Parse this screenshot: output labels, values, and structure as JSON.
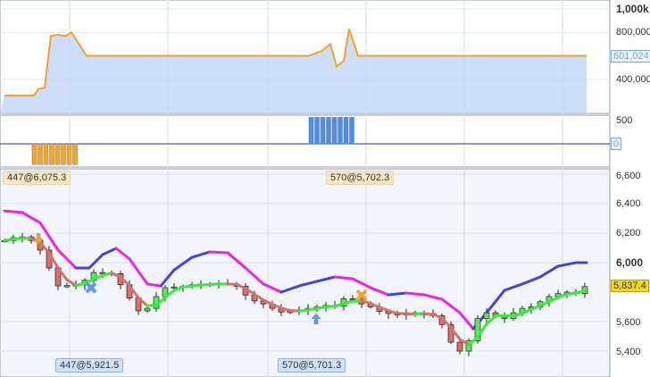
{
  "chart_data": [
    {
      "type": "area",
      "panel": "equity",
      "y_ticks": [
        "1,000k",
        "800,000",
        "400,000"
      ],
      "y_tick_values": [
        1000000,
        800000,
        400000
      ],
      "last_value_label": "601,024",
      "ylim": [
        120000,
        1060000
      ],
      "x": [
        0,
        3.3,
        3.8,
        4.5,
        5.2,
        6,
        6.8,
        7.5,
        9.2,
        34,
        35.5,
        36.5,
        37.2,
        38,
        38.6,
        39.6,
        65.2
      ],
      "y": [
        263000,
        263000,
        320000,
        330000,
        770000,
        780000,
        770000,
        800000,
        601024,
        601024,
        640000,
        700000,
        510000,
        560000,
        830000,
        601024,
        601024
      ],
      "colors": {
        "line": "#f5a030",
        "fill": "#bcd3f5"
      }
    },
    {
      "type": "bar",
      "panel": "position",
      "y_ticks": [
        "500",
        "0"
      ],
      "y_tick_values": [
        500,
        0
      ],
      "last_value_label": "0",
      "ylim": [
        -500,
        600
      ],
      "bars": [
        {
          "x_start": 3.6,
          "count": 8,
          "value": -447,
          "color": "#f5a623"
        },
        {
          "x_start": 34.6,
          "count": 8,
          "value": 570,
          "color": "#4a8ef0"
        }
      ]
    },
    {
      "type": "candlestick",
      "panel": "price",
      "y_ticks": [
        "6,600",
        "6,400",
        "6,200",
        "6,000",
        "5,600",
        "5,400"
      ],
      "y_tick_values": [
        6600,
        6400,
        6200,
        6000,
        5600,
        5400
      ],
      "last_value_label": "5,837.4",
      "ylim": [
        5300,
        6680
      ],
      "close": [
        6150,
        6170,
        6175,
        6150,
        6085,
        5964,
        5842,
        5845,
        5850,
        5880,
        5933,
        5930,
        5925,
        5850,
        5760,
        5673,
        5690,
        5770,
        5830,
        5835,
        5840,
        5850,
        5855,
        5850,
        5862,
        5855,
        5840,
        5780,
        5740,
        5720,
        5690,
        5665,
        5670,
        5680,
        5690,
        5700,
        5710,
        5705,
        5755,
        5752,
        5720,
        5700,
        5670,
        5655,
        5645,
        5660,
        5650,
        5655,
        5640,
        5580,
        5460,
        5400,
        5470,
        5620,
        5660,
        5640,
        5620,
        5660,
        5690,
        5700,
        5735,
        5770,
        5790,
        5800,
        5790,
        5837.4
      ],
      "upper_band": {
        "x": [
          0,
          2,
          4,
          6,
          8,
          9.5,
          11,
          12.5,
          14,
          16,
          17.5,
          19,
          21,
          23,
          25,
          27,
          29,
          31,
          33,
          35,
          37,
          39,
          41,
          43,
          45,
          47,
          49,
          51,
          52.5,
          54,
          56,
          58,
          60,
          62,
          64,
          65.2
        ],
        "y": [
          6351,
          6340,
          6270,
          6085,
          5964,
          5964,
          6055,
          6097,
          6025,
          5855,
          5842,
          5950,
          6036,
          6073,
          6067,
          5964,
          5855,
          5800,
          5842,
          5873,
          5903,
          5890,
          5830,
          5782,
          5794,
          5782,
          5752,
          5660,
          5552,
          5660,
          5812,
          5855,
          5903,
          5976,
          6000,
          6000
        ]
      },
      "colors": {
        "up_candle": "#5ee65e",
        "down_candle": "#d9706a",
        "ma_up": "#33ee33",
        "ma_down": "#d9706a",
        "band_up": "#4444dd",
        "band_down": "#ee22ee"
      }
    }
  ],
  "trade_labels": {
    "entry1": "447@6,075.3",
    "entry2": "570@5,702.3",
    "exit1": "447@5,921.5",
    "exit2": "570@5,701.3"
  },
  "markers": [
    {
      "type": "sell-arrow",
      "x": 3.8,
      "price": 6160
    },
    {
      "type": "cover-x",
      "x": 9.7,
      "price": 5830
    },
    {
      "type": "buy-arrow",
      "x": 34.9,
      "price": 5620
    },
    {
      "type": "exit-x",
      "x": 40,
      "price": 5780
    }
  ]
}
